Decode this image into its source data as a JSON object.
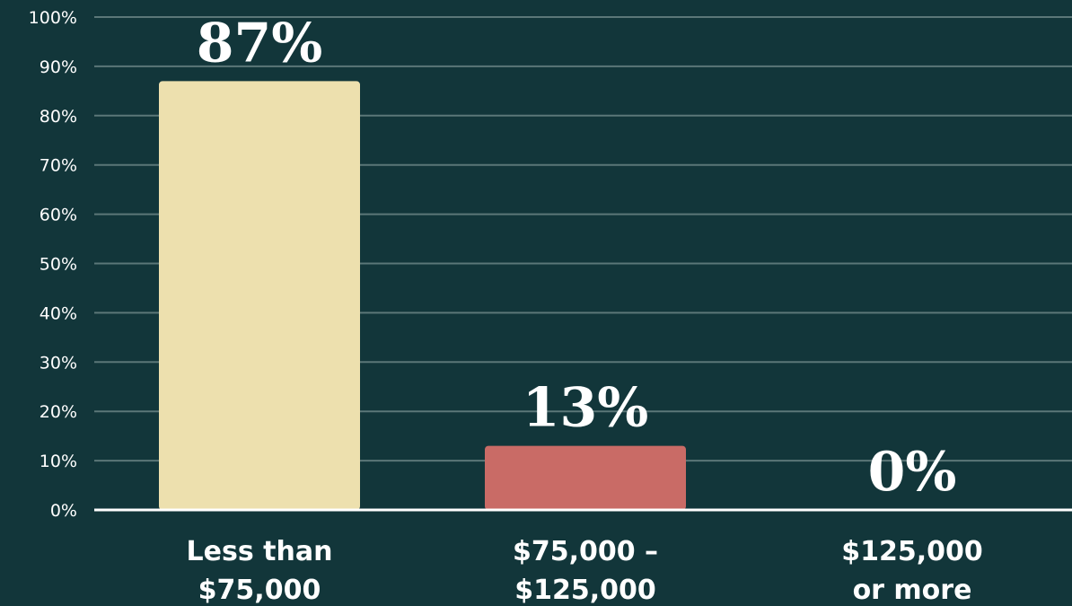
{
  "chart_data": {
    "type": "bar",
    "title": "",
    "xlabel": "",
    "ylabel": "",
    "ylim": [
      0,
      100
    ],
    "yticks": [
      "0%",
      "10%",
      "20%",
      "30%",
      "40%",
      "50%",
      "60%",
      "70%",
      "80%",
      "90%",
      "100%"
    ],
    "grid": true,
    "categories": [
      [
        "Less than",
        "$75,000"
      ],
      [
        "$75,000 –",
        "$125,000"
      ],
      [
        "$125,000",
        "or more"
      ]
    ],
    "values": [
      87,
      13,
      0
    ],
    "data_labels": [
      "87%",
      "13%",
      "0%"
    ],
    "colors": [
      "#ede0ae",
      "#c96b66",
      "#12363a"
    ]
  },
  "colors": {
    "background": "#12363a",
    "gridline": "#5b7778",
    "axis": "#ffffff"
  }
}
